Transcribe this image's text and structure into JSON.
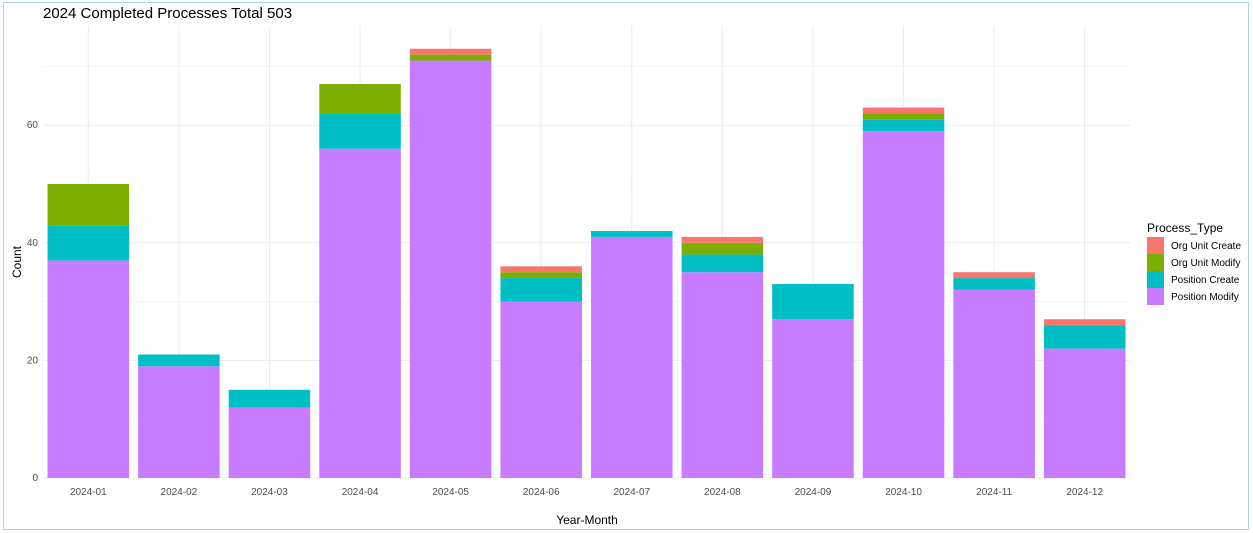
{
  "chart_data": {
    "type": "bar",
    "stacked": true,
    "title": "2024 Completed Processes Total 503",
    "xlabel": "Year-Month",
    "ylabel": "Count",
    "ylim": [
      0,
      76
    ],
    "yticks": [
      0,
      20,
      40,
      60
    ],
    "grid": true,
    "categories": [
      "2024-01",
      "2024-02",
      "2024-03",
      "2024-04",
      "2024-05",
      "2024-06",
      "2024-07",
      "2024-08",
      "2024-09",
      "2024-10",
      "2024-11",
      "2024-12"
    ],
    "legend": {
      "title": "Process_Type",
      "placement": "right"
    },
    "series": [
      {
        "name": "Position Modify",
        "color": "#C77CFF",
        "values": [
          37,
          19,
          12,
          56,
          71,
          30,
          41,
          35,
          27,
          59,
          32,
          22
        ]
      },
      {
        "name": "Position Create",
        "color": "#00BFC4",
        "values": [
          6,
          2,
          3,
          6,
          0,
          4,
          1,
          3,
          6,
          2,
          2,
          4
        ]
      },
      {
        "name": "Org Unit Modify",
        "color": "#7CAE00",
        "values": [
          7,
          0,
          0,
          5,
          1,
          1,
          0,
          2,
          0,
          1,
          0,
          0
        ]
      },
      {
        "name": "Org Unit Create",
        "color": "#F8766D",
        "values": [
          0,
          0,
          0,
          0,
          1,
          1,
          0,
          1,
          0,
          1,
          1,
          1
        ]
      }
    ],
    "legend_order": [
      "Org Unit Create",
      "Org Unit Modify",
      "Position Create",
      "Position Modify"
    ]
  }
}
